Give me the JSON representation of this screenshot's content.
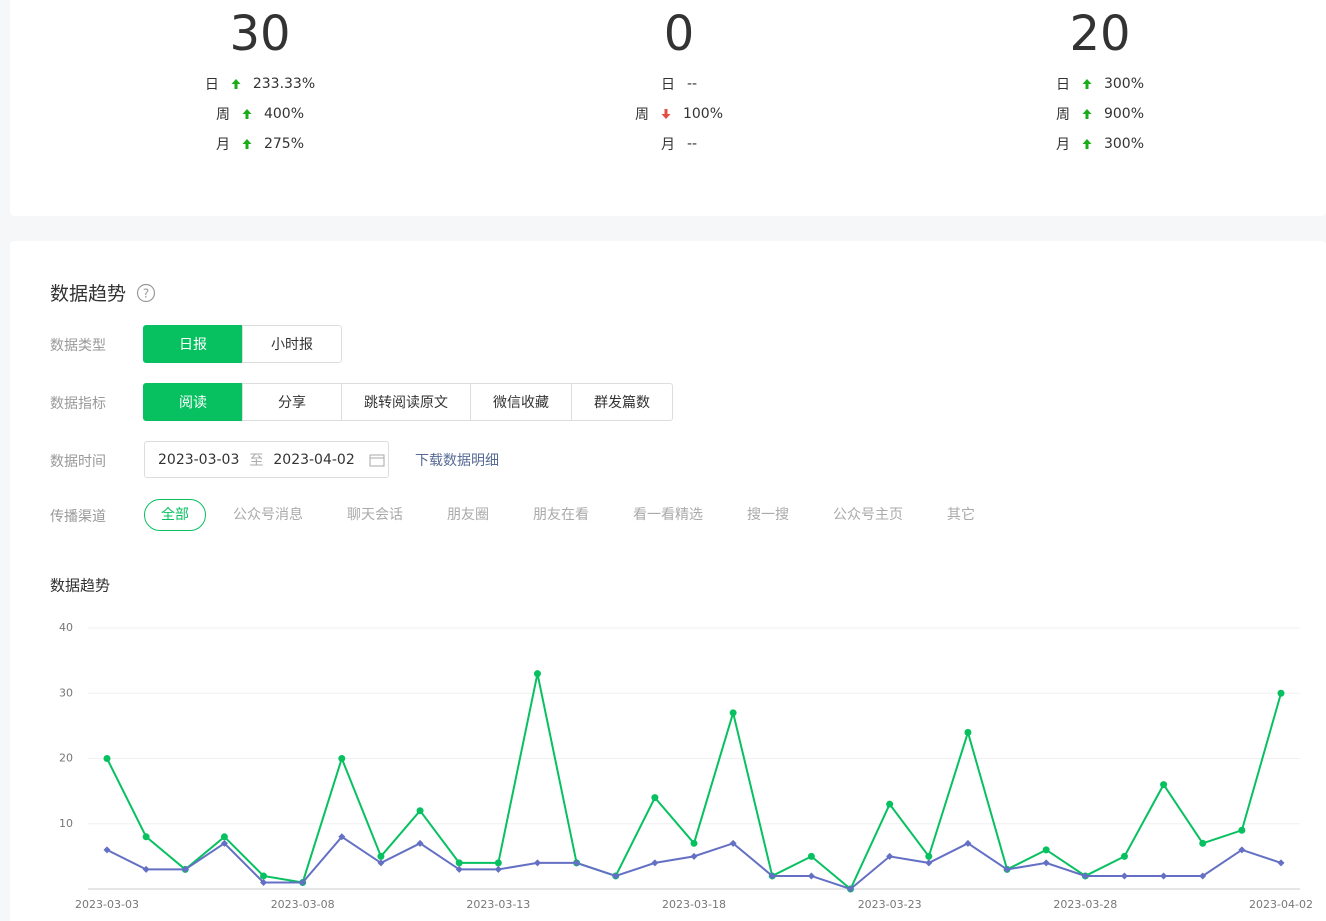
{
  "stats": [
    {
      "value": 30,
      "rows": [
        {
          "label": "日",
          "trend": "up",
          "value": "233.33%"
        },
        {
          "label": "周",
          "trend": "up",
          "value": "400%"
        },
        {
          "label": "月",
          "trend": "up",
          "value": "275%"
        }
      ]
    },
    {
      "value": 0,
      "rows": [
        {
          "label": "日",
          "trend": null,
          "value": "--"
        },
        {
          "label": "周",
          "trend": "down",
          "value": "100%"
        },
        {
          "label": "月",
          "trend": null,
          "value": "--"
        }
      ]
    },
    {
      "value": 20,
      "rows": [
        {
          "label": "日",
          "trend": "up",
          "value": "300%"
        },
        {
          "label": "周",
          "trend": "up",
          "value": "900%"
        },
        {
          "label": "月",
          "trend": "up",
          "value": "300%"
        }
      ]
    }
  ],
  "section": {
    "title": "数据趋势",
    "filters": [
      {
        "label": "数据类型",
        "options": [
          "日报",
          "小时报"
        ],
        "selected": 0
      },
      {
        "label": "数据指标",
        "options": [
          "阅读",
          "分享",
          "跳转阅读原文",
          "微信收藏",
          "群发篇数"
        ],
        "selected": 0
      }
    ],
    "date": {
      "label": "数据时间",
      "start": "2023-03-03",
      "separator": "至",
      "end": "2023-04-02"
    },
    "download": "下载数据明细",
    "channels": {
      "label": "传播渠道",
      "options": [
        "全部",
        "公众号消息",
        "聊天会话",
        "朋友圈",
        "朋友在看",
        "看一看精选",
        "搜一搜",
        "公众号主页",
        "其它"
      ],
      "selected": 0
    }
  },
  "chart_data": {
    "type": "line",
    "title": "数据趋势",
    "categories": [
      "2023-03-03",
      null,
      null,
      null,
      null,
      "2023-03-08",
      null,
      null,
      null,
      null,
      "2023-03-13",
      null,
      null,
      null,
      null,
      "2023-03-18",
      null,
      null,
      null,
      null,
      "2023-03-23",
      null,
      null,
      null,
      null,
      "2023-03-28",
      null,
      null,
      null,
      null,
      "2023-04-02"
    ],
    "series": [
      {
        "color": "#07c160",
        "marker": "circle",
        "values": [
          20,
          8,
          3,
          8,
          2,
          1,
          20,
          5,
          12,
          4,
          4,
          33,
          4,
          2,
          14,
          7,
          27,
          2,
          5,
          0,
          13,
          5,
          24,
          3,
          6,
          2,
          5,
          16,
          7,
          9,
          30
        ]
      },
      {
        "color": "#6470c4",
        "marker": "diamond",
        "values": [
          6,
          3,
          3,
          7,
          1,
          1,
          8,
          4,
          7,
          3,
          3,
          4,
          4,
          2,
          4,
          5,
          7,
          2,
          2,
          0,
          5,
          4,
          7,
          3,
          4,
          2,
          2,
          2,
          2,
          6,
          4
        ]
      }
    ],
    "ylim": [
      0,
      40
    ],
    "yticks": [
      10,
      20,
      30,
      40
    ],
    "grid": true
  }
}
